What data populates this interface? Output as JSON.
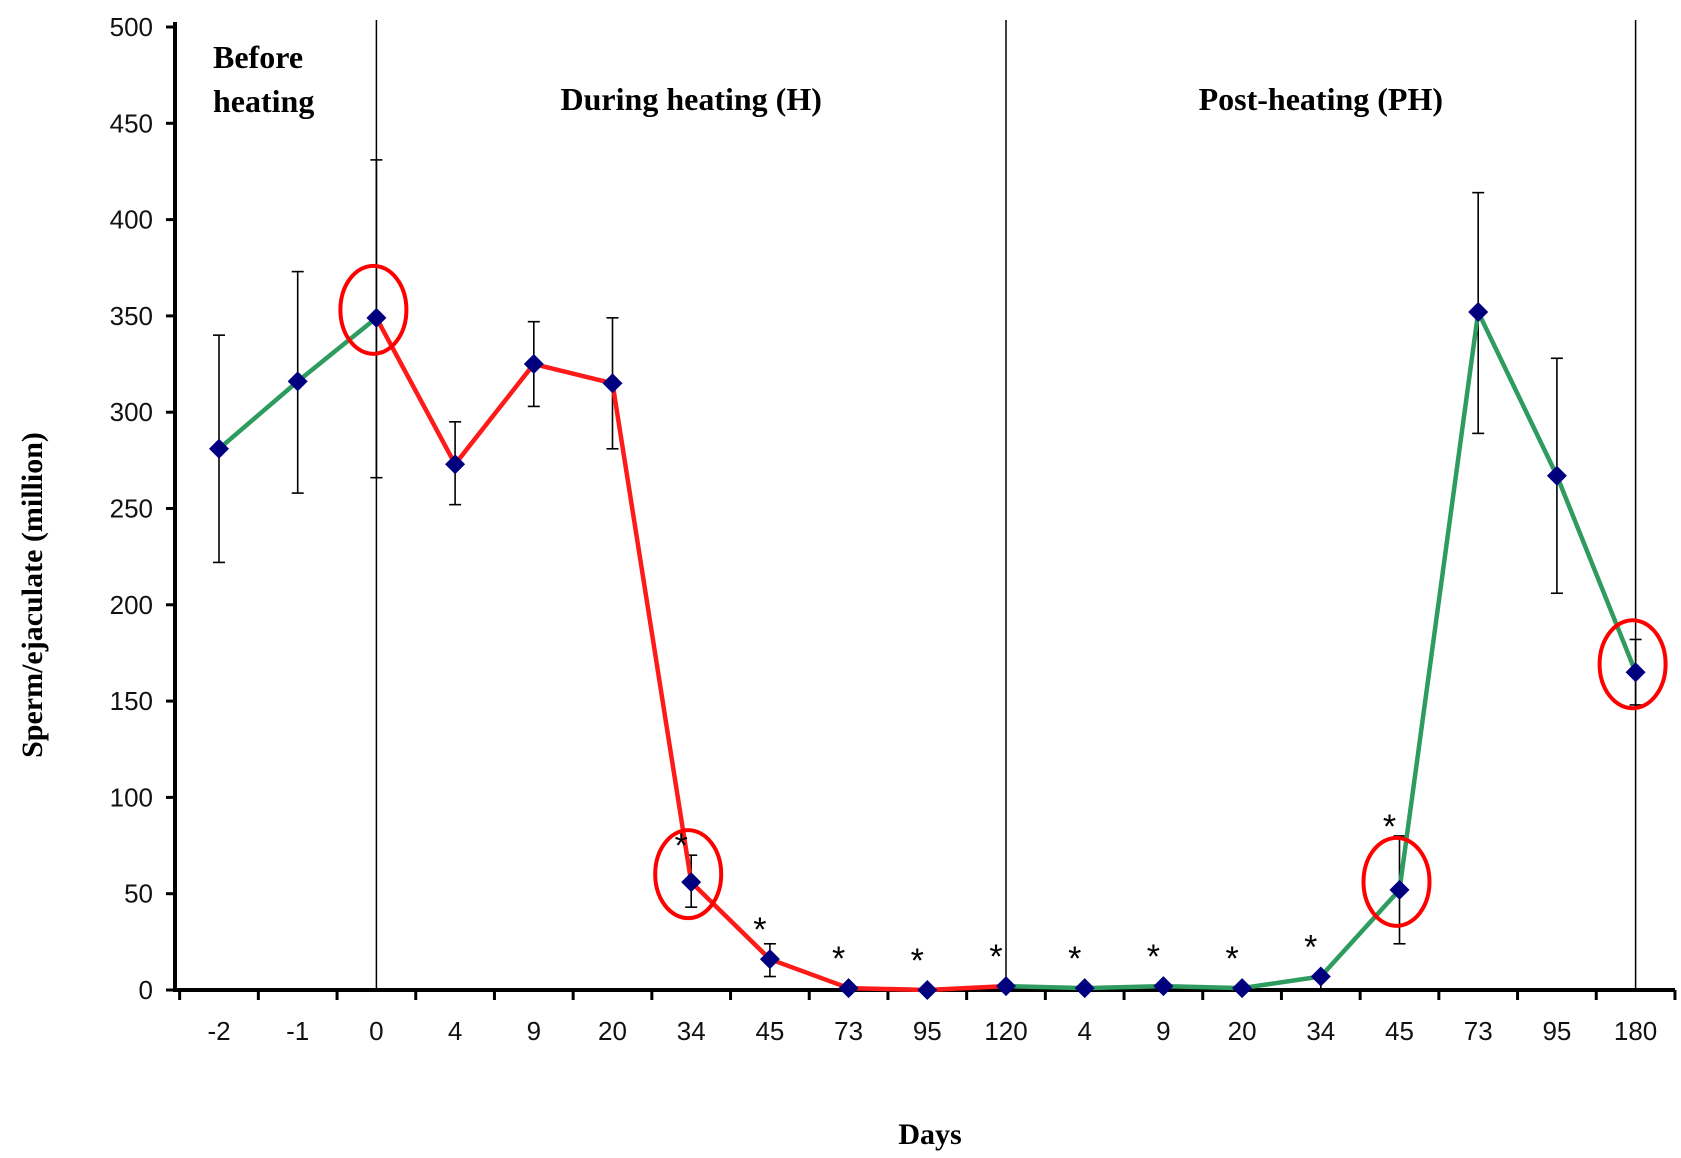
{
  "chart_data": {
    "type": "line",
    "xlabel": "Days",
    "ylabel": "Sperm/ejaculate (million)",
    "ylim": [
      0,
      500
    ],
    "yticks": [
      0,
      50,
      100,
      150,
      200,
      250,
      300,
      350,
      400,
      450,
      500
    ],
    "categories": [
      "-2",
      "-1",
      "0",
      "4",
      "9",
      "20",
      "34",
      "45",
      "73",
      "95",
      "120",
      "4",
      "9",
      "20",
      "34",
      "45",
      "73",
      "95",
      "180"
    ],
    "values": [
      281,
      316,
      349,
      273,
      325,
      315,
      56,
      16,
      1,
      0,
      2,
      1,
      2,
      1,
      7,
      52,
      352,
      267,
      165
    ],
    "error_low": [
      222,
      258,
      266,
      252,
      303,
      281,
      43,
      7,
      0,
      0,
      0,
      0,
      0,
      0,
      0,
      24,
      289,
      206,
      148
    ],
    "error_high": [
      340,
      373,
      431,
      295,
      347,
      349,
      70,
      24,
      2,
      1,
      3,
      2,
      3,
      2,
      8,
      80,
      414,
      328,
      182
    ],
    "segments": [
      {
        "phase": "Before heating",
        "from": 0,
        "to": 2,
        "color": "#2e9b5f"
      },
      {
        "phase": "During heating (H)",
        "from": 2,
        "to": 10,
        "color": "#ff1a1a"
      },
      {
        "phase": "Post-heating (PH)",
        "from": 10,
        "to": 18,
        "color": "#2e9b5f"
      }
    ],
    "phase_labels": [
      {
        "lines": [
          "Before",
          "heating"
        ]
      },
      {
        "lines": [
          "During heating (H)"
        ]
      },
      {
        "lines": [
          "Post-heating (PH)"
        ]
      }
    ],
    "phase_dividers_at": [
      2,
      10,
      18
    ],
    "significance_marker": "*",
    "significant_indices": [
      6,
      7,
      8,
      9,
      10,
      11,
      12,
      13,
      14,
      15
    ],
    "highlighted_indices": [
      2,
      6,
      15,
      18
    ],
    "marker_color": "#00007f",
    "highlight_color": "#ff0000",
    "grid": false,
    "legend": "none"
  }
}
